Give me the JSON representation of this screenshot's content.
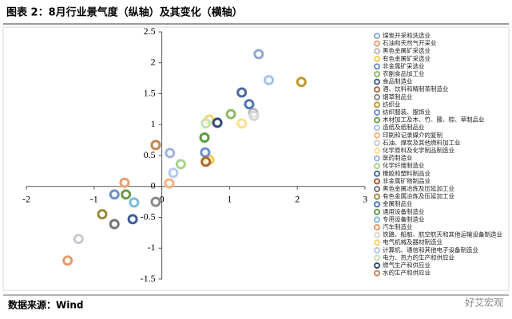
{
  "chart_data": {
    "type": "scatter",
    "title": "图表 2：8月行业景气度（纵轴）及其变化（横轴）",
    "xlim": [
      -2,
      3
    ],
    "ylim": [
      -1.5,
      2.5
    ],
    "xticks": [
      -2,
      -1,
      0,
      1,
      2,
      3
    ],
    "yticks": [
      -1.5,
      -1,
      -0.5,
      0,
      0.5,
      1,
      1.5,
      2,
      2.5
    ],
    "series": [
      {
        "name": "煤炭开采和洗选业",
        "color": "#8fa9d6",
        "x": [
          1.43
        ],
        "values": [
          2.14
        ]
      },
      {
        "name": "石油和天然气开采业",
        "color": "#e8a070",
        "x": [
          -0.55
        ],
        "values": [
          0.06
        ]
      },
      {
        "name": "黑色金属矿采选业",
        "color": "#b8b8b8",
        "x": [
          1.35
        ],
        "values": [
          1.19
        ]
      },
      {
        "name": "有色金属矿采选业",
        "color": "#f2cc4e",
        "x": [
          0.7
        ],
        "values": [
          0.43
        ]
      },
      {
        "name": "非金属矿采选业",
        "color": "#6e8fc8",
        "x": [
          0.64
        ],
        "values": [
          0.55
        ]
      },
      {
        "name": "农副食品加工业",
        "color": "#8dbb6a",
        "x": [
          1.02
        ],
        "values": [
          1.17
        ]
      },
      {
        "name": "食品制造业",
        "color": "#3f5e93",
        "x": [
          -0.43
        ],
        "values": [
          -0.53
        ]
      },
      {
        "name": "酒、饮料和精制茶制造业",
        "color": "#a86a32",
        "x": [
          0.65
        ],
        "values": [
          0.4
        ]
      },
      {
        "name": "烟草制品业",
        "color": "#8a8a8a",
        "x": [
          -0.09
        ],
        "values": [
          -0.25
        ]
      },
      {
        "name": "纺织业",
        "color": "#c09a2a",
        "x": [
          2.06
        ],
        "values": [
          1.69
        ]
      },
      {
        "name": "纺织服装、服饰业",
        "color": "#7190c4",
        "x": [
          -0.7
        ],
        "values": [
          -0.13
        ]
      },
      {
        "name": "木材加工及木、竹、藤、棕、草制品业",
        "color": "#6f9a48",
        "x": [
          -0.53
        ],
        "values": [
          -0.13
        ]
      },
      {
        "name": "造纸及纸制品业",
        "color": "#a6c3e8",
        "x": [
          1.58
        ],
        "values": [
          1.72
        ]
      },
      {
        "name": "印刷和记录媒介的复制",
        "color": "#f4b183",
        "x": [
          0.11
        ],
        "values": [
          0.05
        ]
      },
      {
        "name": "石油、煤炭及其他燃料加工业",
        "color": "#c9c9c9",
        "x": [
          -1.23
        ],
        "values": [
          -0.85
        ]
      },
      {
        "name": "化学原料及化学制品制造业",
        "color": "#ffe08a",
        "x": [
          1.18
        ],
        "values": [
          1.02
        ]
      },
      {
        "name": "医药制造业",
        "color": "#9db3dd",
        "x": [
          0.12
        ],
        "values": [
          0.54
        ]
      },
      {
        "name": "化学纤维制造业",
        "color": "#a9d18e",
        "x": [
          0.28
        ],
        "values": [
          0.36
        ]
      },
      {
        "name": "橡胶和塑料制品业",
        "color": "#4b6a9b",
        "x": [
          1.18
        ],
        "values": [
          1.52
        ]
      },
      {
        "name": "非金属矿物制品业",
        "color": "#b0562f",
        "x": [
          -0.09
        ],
        "values": [
          0.67
        ]
      },
      {
        "name": "黑色金属冶炼及压延加工业",
        "color": "#767676",
        "x": [
          -0.7
        ],
        "values": [
          -0.61
        ]
      },
      {
        "name": "有色金属冶炼及压延加工业",
        "color": "#9c8a3a",
        "x": [
          -0.88
        ],
        "values": [
          -0.45
        ]
      },
      {
        "name": "金属制品业",
        "color": "#4f74b3",
        "x": [
          1.29
        ],
        "values": [
          1.33
        ]
      },
      {
        "name": "通用设备制造业",
        "color": "#5f9a45",
        "x": [
          0.63
        ],
        "values": [
          0.79
        ]
      },
      {
        "name": "专用设备制造业",
        "color": "#7dbbe0",
        "x": [
          -0.41
        ],
        "values": [
          -0.26
        ]
      },
      {
        "name": "汽车制造业",
        "color": "#e39a6a",
        "x": [
          -1.39
        ],
        "values": [
          -1.2
        ]
      },
      {
        "name": "铁路、船舶、航空航天和其他运输设备制造业",
        "color": "#d6d6d6",
        "x": [
          1.36
        ],
        "values": [
          1.14
        ]
      },
      {
        "name": "电气机械及器材制造业",
        "color": "#f7d36c",
        "x": [
          0.7
        ],
        "values": [
          1.08
        ]
      },
      {
        "name": "计算机、通信和其他电子设备制造业",
        "color": "#b4c9ea",
        "x": [
          0.17
        ],
        "values": [
          0.22
        ]
      },
      {
        "name": "电力、热力的生产和供应业",
        "color": "#c5e0b4",
        "x": [
          0.65
        ],
        "values": [
          1.02
        ]
      },
      {
        "name": "燃气生产和供应业",
        "color": "#2f4d7a",
        "x": [
          0.82
        ],
        "values": [
          1.03
        ]
      },
      {
        "name": "水的生产和供应业",
        "color": "#c28a55",
        "x": [
          -0.09
        ],
        "values": [
          0.67
        ]
      }
    ]
  },
  "source": "数据来源：Wind",
  "watermark": "好艾宏观"
}
